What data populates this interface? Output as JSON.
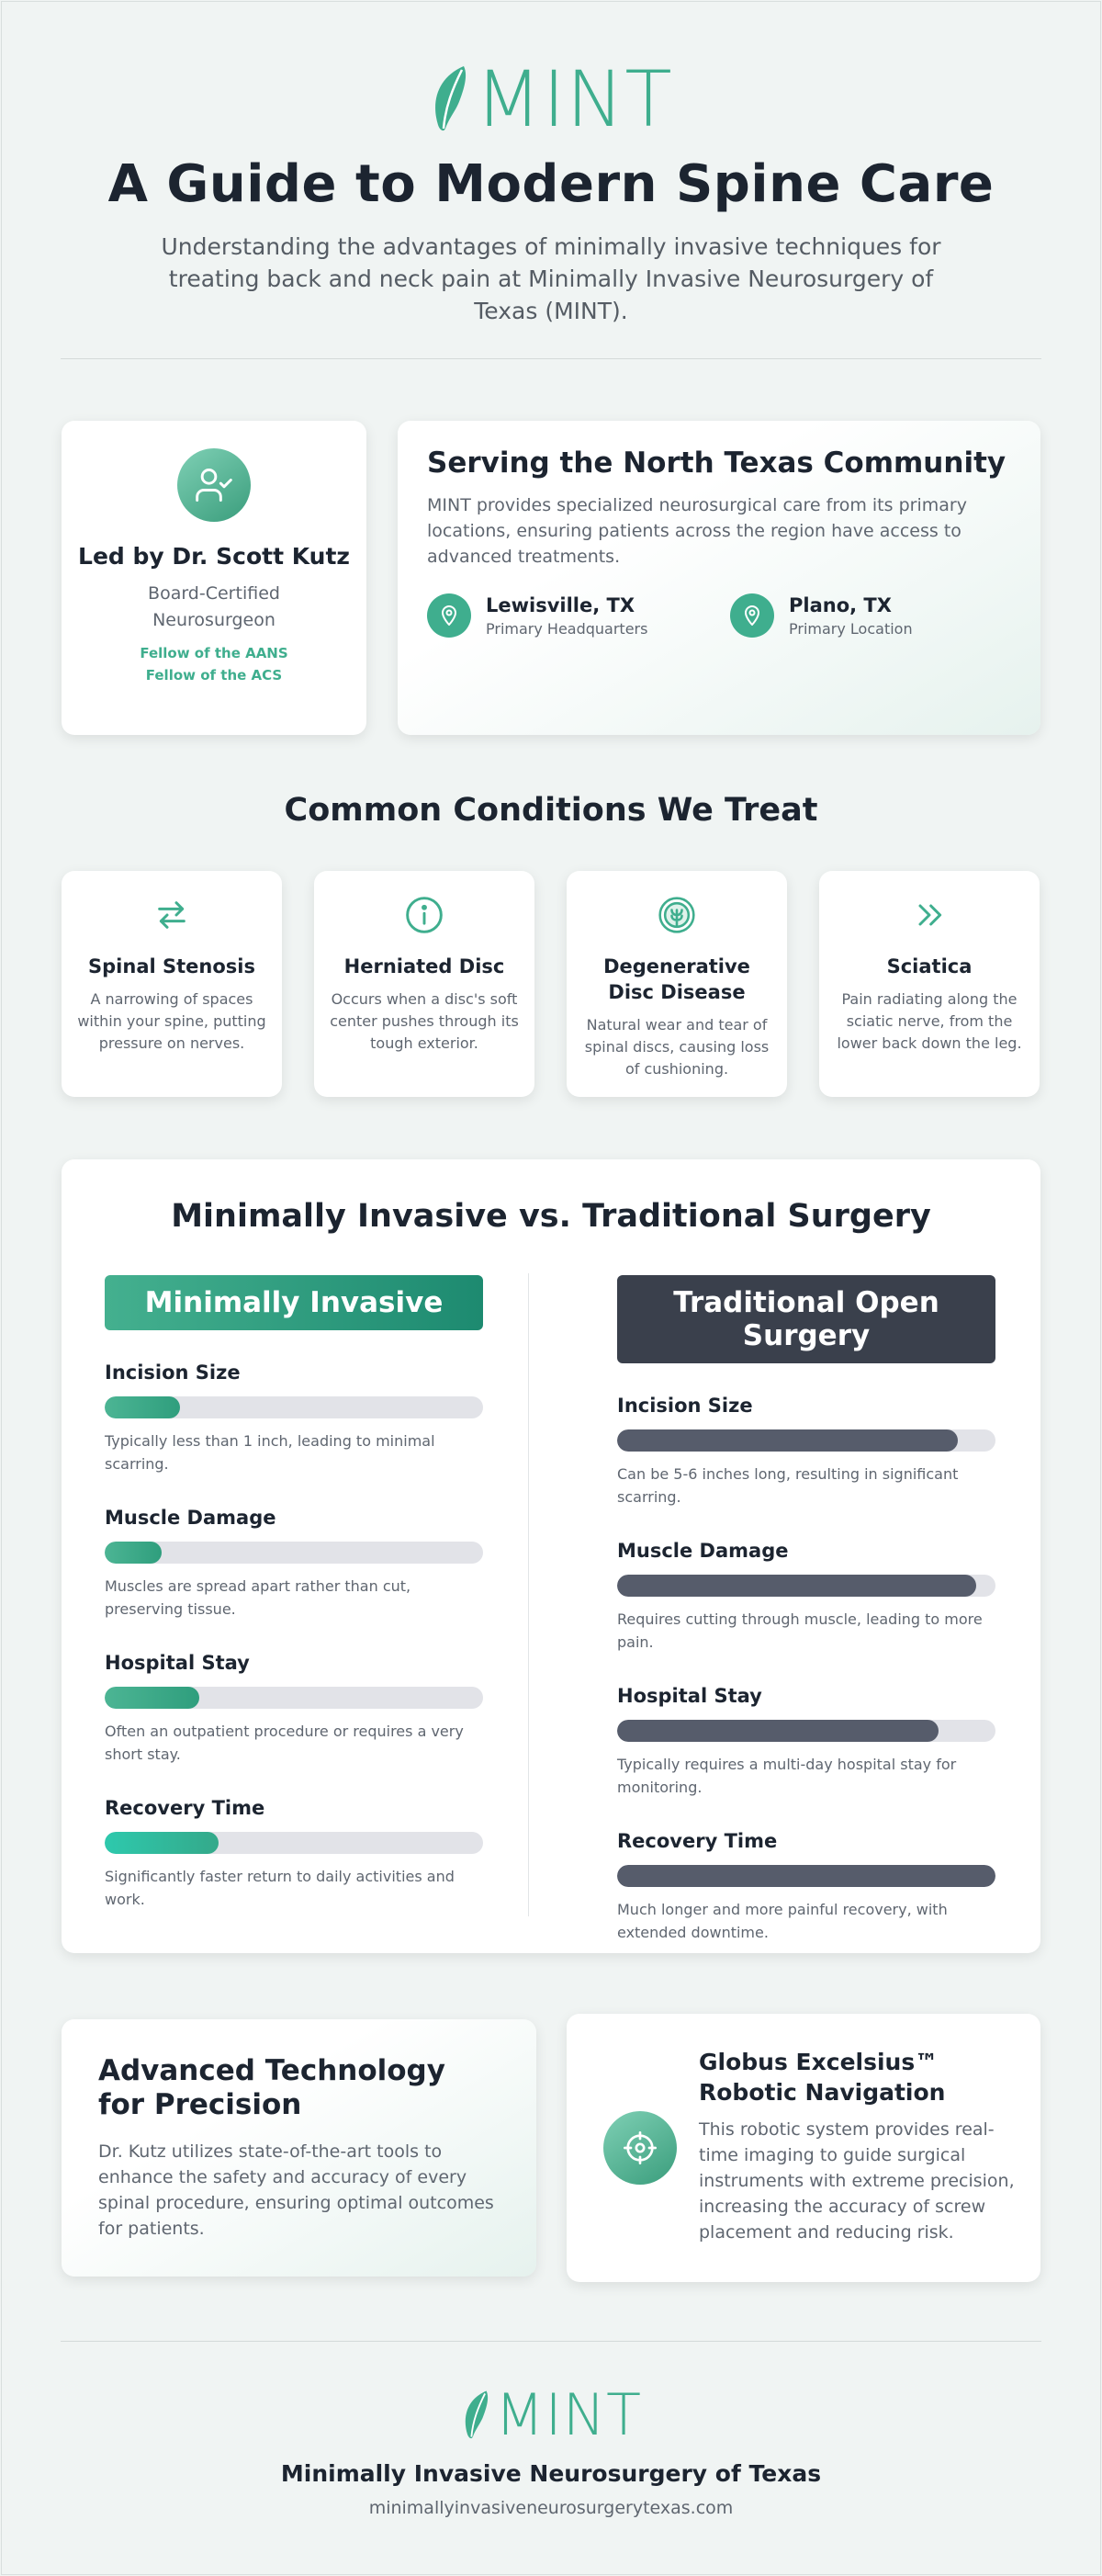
{
  "header": {
    "logo_text": "MINT",
    "title": "A Guide to Modern Spine Care",
    "subtitle": "Understanding the advantages of minimally invasive techniques for treating back and neck pain at Minimally Invasive Neurosurgery of Texas (MINT)."
  },
  "doctor": {
    "name": "Led by Dr. Scott Kutz",
    "role": "Board-Certified Neurosurgeon",
    "fellows": [
      "Fellow of the AANS",
      "Fellow of the ACS"
    ],
    "icon": "user-check-icon"
  },
  "community": {
    "title": "Serving the North Texas Community",
    "text": "MINT provides specialized neurosurgical care from its primary locations, ensuring patients across the region have access to advanced treatments.",
    "locations": [
      {
        "name": "Lewisville, TX",
        "sub": "Primary Headquarters",
        "icon": "map-pin-icon"
      },
      {
        "name": "Plano, TX",
        "sub": "Primary Location",
        "icon": "map-pin-icon"
      }
    ]
  },
  "conditions": {
    "title": "Common Conditions We Treat",
    "items": [
      {
        "title": "Spinal Stenosis",
        "desc": "A narrowing of spaces within your spine, putting pressure on nerves.",
        "icon": "arrows-left-right-icon"
      },
      {
        "title": "Herniated Disc",
        "desc": "Occurs when a disc's soft center pushes through its tough exterior.",
        "icon": "info-circle-icon"
      },
      {
        "title": "Degenerative Disc Disease",
        "desc": "Natural wear and tear of spinal discs, causing loss of cushioning.",
        "icon": "disc-icon"
      },
      {
        "title": "Sciatica",
        "desc": "Pain radiating along the sciatic nerve, from the lower back down the leg.",
        "icon": "chevrons-right-icon"
      }
    ]
  },
  "comparison": {
    "title": "Minimally Invasive vs. Traditional Surgery",
    "minimally": {
      "heading": "Minimally Invasive",
      "metrics": [
        {
          "label": "Incision Size",
          "fill": 0.2,
          "desc": "Typically less than 1 inch, leading to minimal scarring."
        },
        {
          "label": "Muscle Damage",
          "fill": 0.15,
          "desc": "Muscles are spread apart rather than cut, preserving tissue."
        },
        {
          "label": "Hospital Stay",
          "fill": 0.25,
          "desc": "Often an outpatient procedure or requires a very short stay."
        },
        {
          "label": "Recovery Time",
          "fill": 0.3,
          "desc": "Significantly faster return to daily activities and work."
        }
      ]
    },
    "traditional": {
      "heading": "Traditional Open Surgery",
      "metrics": [
        {
          "label": "Incision Size",
          "fill": 0.9,
          "desc": "Can be 5-6 inches long, resulting in significant scarring."
        },
        {
          "label": "Muscle Damage",
          "fill": 0.95,
          "desc": "Requires cutting through muscle, leading to more pain."
        },
        {
          "label": "Hospital Stay",
          "fill": 0.85,
          "desc": "Typically requires a multi-day hospital stay for monitoring."
        },
        {
          "label": "Recovery Time",
          "fill": 1.0,
          "desc": "Much longer and more painful recovery, with extended downtime."
        }
      ]
    }
  },
  "technology": {
    "title": "Advanced Technology for Precision",
    "text": "Dr. Kutz utilizes state-of-the-art tools to enhance the safety and accuracy of every spinal procedure, ensuring optimal outcomes for patients."
  },
  "robot": {
    "title": "Globus Excelsius™ Robotic Navigation",
    "text": "This robotic system provides real-time imaging to guide surgical instruments with extreme precision, increasing the accuracy of screw placement and reducing risk.",
    "icon": "crosshair-icon"
  },
  "footer": {
    "logo_text": "MINT",
    "name": "Minimally Invasive Neurosurgery of Texas",
    "url": "minimallyinvasiveneurosurgerytexas.com"
  },
  "colors": {
    "accent": "#3fae8e",
    "dark": "#3a404c",
    "bar_gray": "#565c6b",
    "track": "#e2e3e8"
  }
}
